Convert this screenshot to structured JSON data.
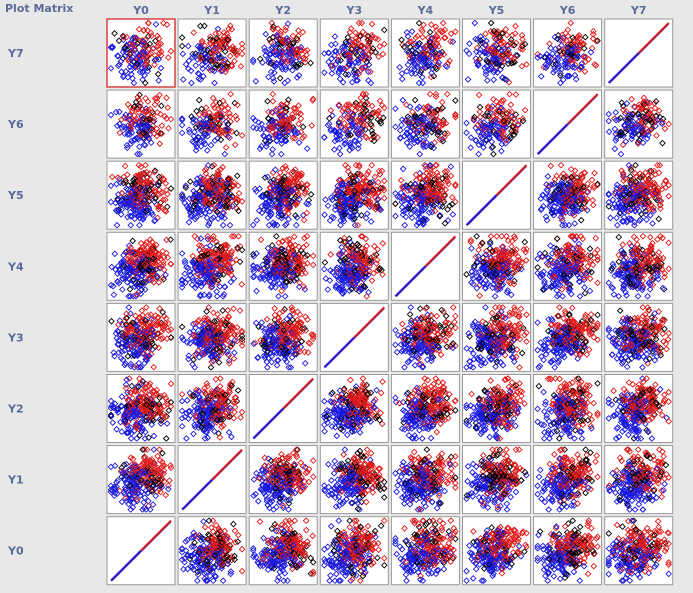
{
  "title": "Plot Matrix",
  "colors": {
    "background": "#e8e8e8",
    "cell_background": "#ffffff",
    "label": "#5a6a9a",
    "selected_border": "#d94040",
    "point_blue": "#1a1ae0",
    "point_red": "#e01a1a",
    "point_black": "#000000"
  },
  "chart_data": {
    "type": "scatter",
    "subtype": "scatter-matrix",
    "marker": "diamond-open",
    "variables": [
      "Y0",
      "Y1",
      "Y2",
      "Y3",
      "Y4",
      "Y5",
      "Y6",
      "Y7"
    ],
    "column_order": [
      "Y0",
      "Y1",
      "Y2",
      "Y3",
      "Y4",
      "Y5",
      "Y6",
      "Y7"
    ],
    "row_order": [
      "Y7",
      "Y6",
      "Y5",
      "Y4",
      "Y3",
      "Y2",
      "Y1",
      "Y0"
    ],
    "diagonal": "identity-line",
    "selected_cell": {
      "row": "Y7",
      "col": "Y0"
    },
    "point_classes": [
      "blue",
      "red",
      "black"
    ],
    "points_per_cell": 260,
    "axis_range": [
      0,
      1
    ],
    "grid": false
  }
}
